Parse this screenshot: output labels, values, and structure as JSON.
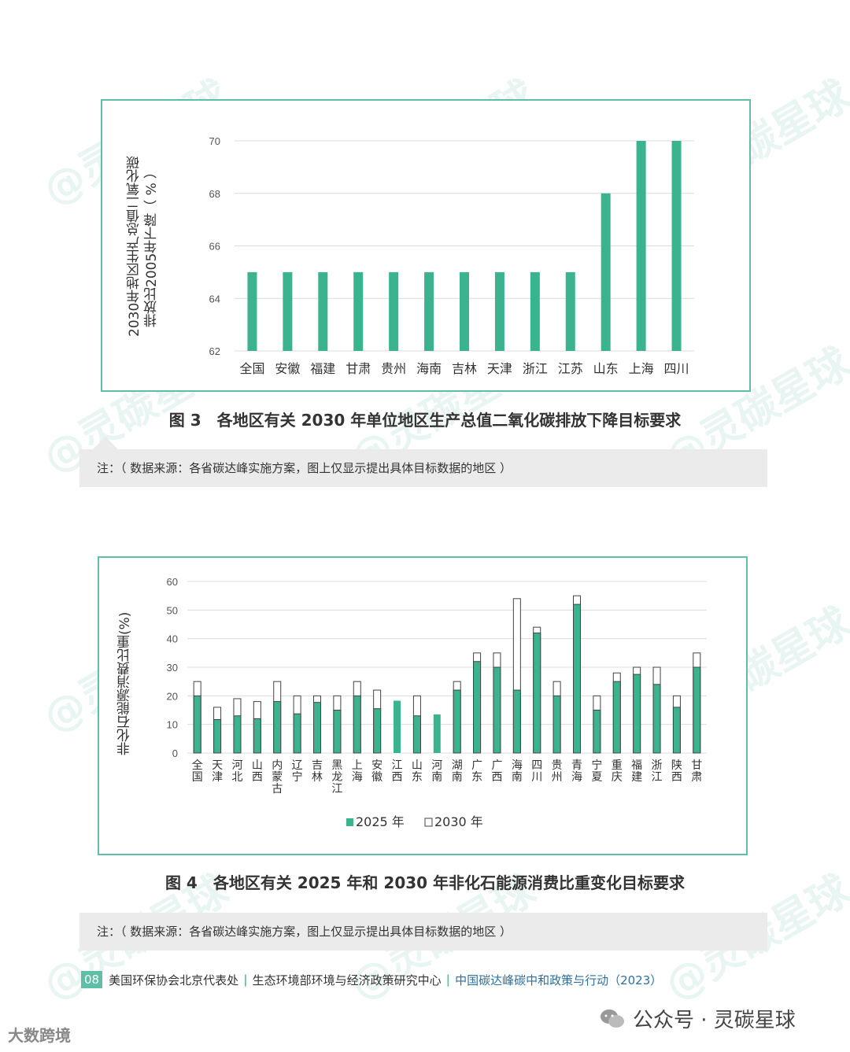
{
  "figure3": {
    "caption": "图 3　各地区有关 2030 年单位地区生产总值二氧化碳排放下降目标要求",
    "note": "注：（ 数据来源：各省碳达峰实施方案，图上仅显示提出具体目标数据的地区 ）",
    "ylabel_line1": "2030年地区生产总值二氧化碳",
    "ylabel_line2": "排放比2005年下降（ % ）"
  },
  "figure4": {
    "caption": "图 4　各地区有关 2025 年和 2030 年非化石能源消费比重变化目标要求",
    "note": "注：（ 数据来源：各省碳达峰实施方案，图上仅显示提出具体目标数据的地区 ）",
    "ylabel": "非化石能源消费比重(%)"
  },
  "footer": {
    "page_number": "08",
    "org1": "美国环保协会北京代表处",
    "org2": "生态环境部环境与经济政策研究中心",
    "report": "中国碳达峰碳中和政策与行动（2023）"
  },
  "wechat": {
    "label": "公众号 · 灵碳星球",
    "icon": "wechat-icon"
  },
  "corner_brand": "大数跨境",
  "watermark_text": "@灵碳星球",
  "colors": {
    "accent": "#3bb38e",
    "frame": "#5cbfa6",
    "grid": "#dcdcdc"
  },
  "chart_data": [
    {
      "type": "bar",
      "categories": [
        "全国",
        "安徽",
        "福建",
        "甘肃",
        "贵州",
        "海南",
        "吉林",
        "天津",
        "浙江",
        "江苏",
        "山东",
        "上海",
        "四川"
      ],
      "values": [
        65,
        65,
        65,
        65,
        65,
        65,
        65,
        65,
        65,
        65,
        68,
        70,
        70
      ],
      "ylabel": "2030年地区生产总值二氧化碳排放比2005年下降（ % ）",
      "ylim": [
        62,
        70
      ],
      "yticks": [
        62,
        64,
        66,
        68,
        70
      ],
      "grid": true
    },
    {
      "type": "bar",
      "categories": [
        "全国",
        "天津",
        "河北",
        "山西",
        "内蒙古",
        "辽宁",
        "吉林",
        "黑龙江",
        "上海",
        "安徽",
        "江西",
        "山东",
        "河南",
        "湖南",
        "广东",
        "广西",
        "海南",
        "四川",
        "贵州",
        "青海",
        "宁夏",
        "重庆",
        "福建",
        "浙江",
        "陕西",
        "甘肃"
      ],
      "series": [
        {
          "name": "2025 年",
          "values": [
            20,
            11.7,
            13,
            12,
            18,
            13.7,
            17.7,
            15,
            20,
            15.5,
            18.3,
            13,
            13.5,
            22,
            32,
            30,
            22,
            42,
            20,
            52,
            15,
            25,
            27.5,
            24,
            16,
            30
          ]
        },
        {
          "name": "2030 年",
          "values": [
            25,
            16,
            19,
            18,
            25,
            20,
            20,
            20,
            25,
            22,
            null,
            20,
            null,
            25,
            35,
            35,
            54,
            44,
            25,
            55,
            20,
            28,
            30,
            30,
            20,
            35
          ]
        }
      ],
      "ylabel": "非化石能源消费比重(%)",
      "ylim": [
        0,
        60
      ],
      "yticks": [
        0,
        10,
        20,
        30,
        40,
        50,
        60
      ],
      "legend_position": "bottom",
      "grid": true
    }
  ]
}
